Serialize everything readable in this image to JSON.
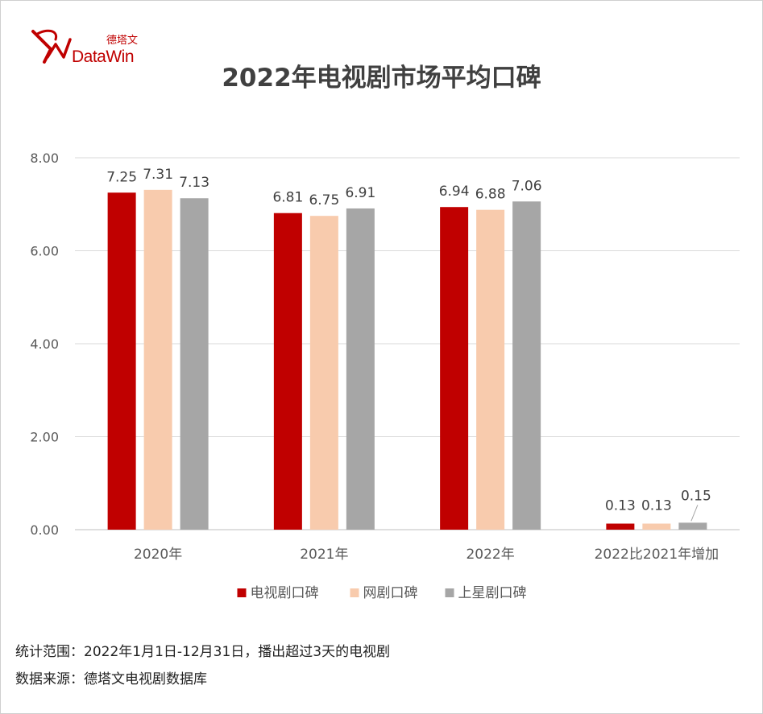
{
  "brand": {
    "name_en": "DataWin",
    "name_cn": "德塔文"
  },
  "chart_data": {
    "type": "bar",
    "title": "2022年电视剧市场平均口碑",
    "categories": [
      "2020年",
      "2021年",
      "2022年",
      "2022比2021年增加"
    ],
    "series": [
      {
        "name": "电视剧口碑",
        "values": [
          7.25,
          6.81,
          6.94,
          0.13
        ],
        "labels": [
          "7.25",
          "6.81",
          "6.94",
          "0.13"
        ],
        "color": "#c00000"
      },
      {
        "name": "网剧口碑",
        "values": [
          7.31,
          6.75,
          6.88,
          0.13
        ],
        "labels": [
          "7.31",
          "6.75",
          "6.88",
          "0.13"
        ],
        "color": "#f8cbad"
      },
      {
        "name": "上星剧口碑",
        "values": [
          7.13,
          6.91,
          7.06,
          0.15
        ],
        "labels": [
          "7.13",
          "6.91",
          "7.06",
          "0.15"
        ],
        "color": "#a6a6a6"
      }
    ],
    "yticks": [
      "0.00",
      "2.00",
      "4.00",
      "6.00",
      "8.00"
    ],
    "ylim": [
      0,
      8
    ],
    "grid": true,
    "legend_position": "bottom"
  },
  "footer": {
    "scope": "统计范围：2022年1月1日-12月31日，播出超过3天的电视剧",
    "source": "数据来源：德塔文电视剧数据库"
  }
}
